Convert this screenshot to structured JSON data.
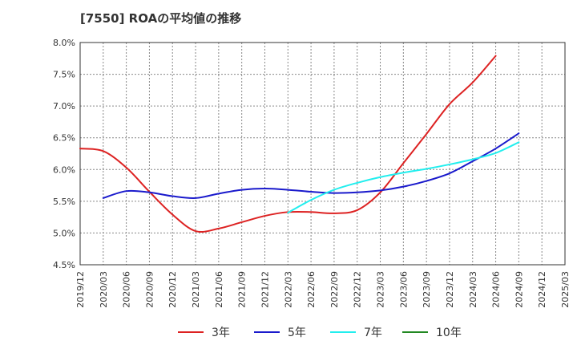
{
  "chart_data": {
    "type": "line",
    "title": "[7550]  ROAの平均値の推移",
    "xlabel": "",
    "ylabel": "",
    "ylim": [
      4.5,
      8.0
    ],
    "grid": true,
    "legend_position": "bottom",
    "y_ticks": [
      "4.5%",
      "5.0%",
      "5.5%",
      "6.0%",
      "6.5%",
      "7.0%",
      "7.5%",
      "8.0%"
    ],
    "x_ticks": [
      "2019/12",
      "2020/03",
      "2020/06",
      "2020/09",
      "2020/12",
      "2021/03",
      "2021/06",
      "2021/09",
      "2021/12",
      "2022/03",
      "2022/06",
      "2022/09",
      "2022/12",
      "2023/03",
      "2023/06",
      "2023/09",
      "2023/12",
      "2024/03",
      "2024/06",
      "2024/09",
      "2024/12",
      "2025/03"
    ],
    "series": [
      {
        "name": "3年",
        "color": "#dd2222",
        "values": [
          6.33,
          6.29,
          6.03,
          5.65,
          5.29,
          5.03,
          5.07,
          5.17,
          5.27,
          5.33,
          5.33,
          5.31,
          5.36,
          5.64,
          6.1,
          6.56,
          7.03,
          7.37,
          7.79
        ]
      },
      {
        "name": "5年",
        "color": "#1a1acc",
        "values": [
          null,
          5.55,
          5.66,
          5.64,
          5.58,
          5.55,
          5.62,
          5.68,
          5.7,
          5.68,
          5.65,
          5.63,
          5.64,
          5.67,
          5.73,
          5.82,
          5.94,
          6.13,
          6.33,
          6.57
        ]
      },
      {
        "name": "7年",
        "color": "#22eeee",
        "values": [
          null,
          null,
          null,
          null,
          null,
          null,
          null,
          null,
          null,
          5.32,
          5.52,
          5.68,
          5.79,
          5.88,
          5.95,
          6.01,
          6.08,
          6.16,
          6.26,
          6.43
        ]
      },
      {
        "name": "10年",
        "color": "#228822",
        "values": []
      }
    ]
  }
}
